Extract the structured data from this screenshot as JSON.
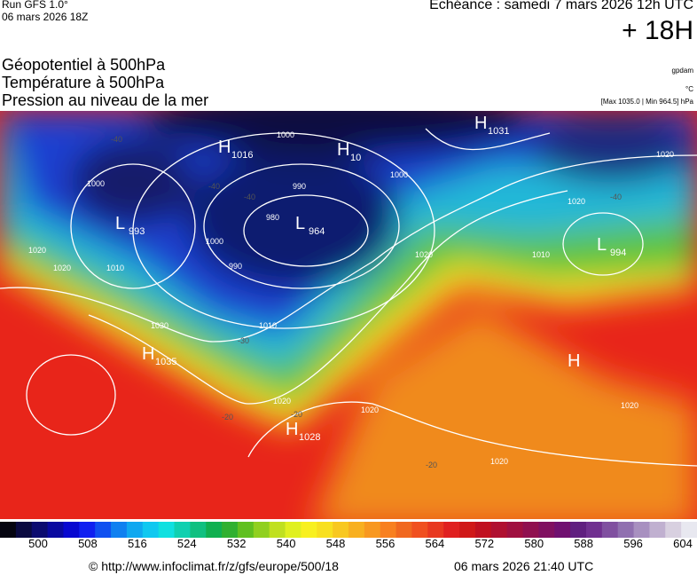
{
  "header": {
    "run": "Run GFS 1.0°",
    "date": "06 mars 2026 18Z",
    "echeance": "Echéance : samedi 7 mars 2026 12h UTC",
    "step": "+ 18H"
  },
  "titles": [
    "Géopotentiel à 500hPa",
    "Température à 500hPa",
    "Pression au niveau de la mer"
  ],
  "units": [
    "gpdam",
    "°C",
    "[Max 1035.0 | Min 964.5] hPa"
  ],
  "centers": [
    {
      "letter": "H",
      "value": "1016"
    },
    {
      "letter": "H",
      "value": "10"
    },
    {
      "letter": "L",
      "value": "993"
    },
    {
      "letter": "L",
      "value": "964"
    },
    {
      "letter": "H",
      "value": "1031"
    },
    {
      "letter": "L",
      "value": "994"
    },
    {
      "letter": "H",
      "value": "1035"
    },
    {
      "letter": "H",
      "value": "1028"
    },
    {
      "letter": "H",
      "value": ""
    }
  ],
  "isobar_labels": [
    "1000",
    "1000",
    "990",
    "980",
    "990",
    "1000",
    "1010",
    "1000",
    "1010",
    "1020",
    "1020",
    "1020",
    "1010",
    "1020",
    "1030",
    "1020",
    "1020",
    "1020",
    "1020",
    "1020"
  ],
  "temperature_labels": [
    "-40",
    "-40",
    "-40",
    "-40",
    "-30",
    "-20",
    "-20",
    "-20"
  ],
  "colorbar": {
    "labels": [
      500,
      508,
      516,
      524,
      532,
      540,
      548,
      556,
      564,
      572,
      580,
      588,
      596,
      604
    ]
  },
  "footer": {
    "url": "© http://www.infoclimat.fr/z/gfs/europe/500/18",
    "time": "06 mars 2026 21:40 UTC"
  }
}
